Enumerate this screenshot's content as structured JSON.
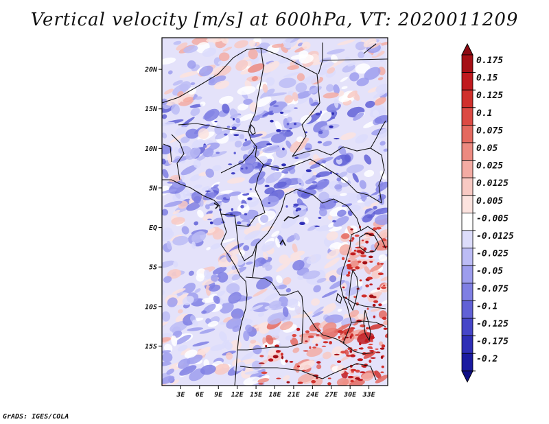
{
  "title": "Vertical velocity [m/s] at 600hPa, VT: 2020011209",
  "credit": "GrADS: IGES/COLA",
  "map": {
    "lon_range": [
      0,
      36
    ],
    "lat_range": [
      -20,
      24
    ],
    "lat_ticks": [
      {
        "value": 20,
        "label": "20N"
      },
      {
        "value": 15,
        "label": "15N"
      },
      {
        "value": 10,
        "label": "10N"
      },
      {
        "value": 5,
        "label": "5N"
      },
      {
        "value": 0,
        "label": "EQ"
      },
      {
        "value": -5,
        "label": "5S"
      },
      {
        "value": -10,
        "label": "10S"
      },
      {
        "value": -15,
        "label": "15S"
      }
    ],
    "lon_ticks": [
      {
        "value": 3,
        "label": "3E"
      },
      {
        "value": 6,
        "label": "6E"
      },
      {
        "value": 9,
        "label": "9E"
      },
      {
        "value": 12,
        "label": "12E"
      },
      {
        "value": 15,
        "label": "15E"
      },
      {
        "value": 18,
        "label": "18E"
      },
      {
        "value": 21,
        "label": "21E"
      },
      {
        "value": 24,
        "label": "24E"
      },
      {
        "value": 27,
        "label": "27E"
      },
      {
        "value": 30,
        "label": "30E"
      },
      {
        "value": 33,
        "label": "33E"
      }
    ]
  },
  "colorbar": {
    "levels": [
      {
        "label": "0.175",
        "color": "#a50f15"
      },
      {
        "label": "0.15",
        "color": "#c01a1f"
      },
      {
        "label": "0.125",
        "color": "#d0302c"
      },
      {
        "label": "0.1",
        "color": "#dc4a43"
      },
      {
        "label": "0.075",
        "color": "#e4695f"
      },
      {
        "label": "0.05",
        "color": "#ec8a80"
      },
      {
        "label": "0.025",
        "color": "#f3aba3"
      },
      {
        "label": "0.0125",
        "color": "#f8c9c3"
      },
      {
        "label": "0.005",
        "color": "#fce3df"
      },
      {
        "label": "-0.005",
        "color": "#ffffff"
      },
      {
        "label": "-0.0125",
        "color": "#dcdcfb"
      },
      {
        "label": "-0.025",
        "color": "#bcbcf5"
      },
      {
        "label": "-0.05",
        "color": "#9d9ded"
      },
      {
        "label": "-0.075",
        "color": "#7f7fe3"
      },
      {
        "label": "-0.1",
        "color": "#6161d6"
      },
      {
        "label": "-0.125",
        "color": "#4646c8"
      },
      {
        "label": "-0.175",
        "color": "#2e2eb6"
      },
      {
        "label": "-0.2",
        "color": "#1a1aa0"
      }
    ],
    "top_color": "#8c0a12",
    "bottom_color": "#0d0d85"
  }
}
